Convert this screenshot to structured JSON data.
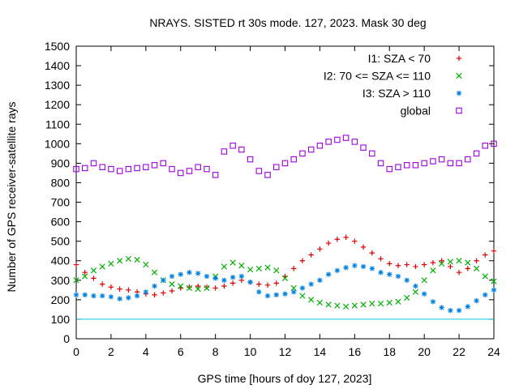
{
  "chart_data": {
    "type": "scatter",
    "title": "NRAYS. SISTED rt 30s mode. 127, 2023. Mask 30 deg",
    "xlabel": "GPS time [hours of doy 127, 2023]",
    "ylabel": "Number of GPS receiver-satellite rays",
    "xlim": [
      0,
      24
    ],
    "ylim": [
      0,
      1500
    ],
    "x_ticks": [
      "0",
      "2",
      "4",
      "6",
      "8",
      "10",
      "12",
      "14",
      "16",
      "18",
      "20",
      "22",
      "24"
    ],
    "y_ticks": [
      "0",
      "100",
      "200",
      "300",
      "400",
      "500",
      "600",
      "700",
      "800",
      "900",
      "1000",
      "1100",
      "1200",
      "1300",
      "1400",
      "1500"
    ],
    "grid": false,
    "legend_position": "top-right",
    "reference_line": {
      "y": 100,
      "color": "#00d0d0"
    },
    "series": [
      {
        "name": "I1: SZA < 70",
        "marker": "+",
        "color": "#e00000",
        "x": [
          0,
          0.5,
          1,
          1.5,
          2,
          2.5,
          3,
          3.5,
          4,
          4.5,
          5,
          5.5,
          6,
          6.5,
          7,
          7.5,
          8,
          8.5,
          9,
          9.5,
          10,
          10.5,
          11,
          11.5,
          12,
          12.5,
          13,
          13.5,
          14,
          14.5,
          15,
          15.5,
          16,
          16.5,
          17,
          17.5,
          18,
          18.5,
          19,
          19.5,
          20,
          20.5,
          21,
          21.5,
          22,
          22.5,
          23,
          23.5,
          24
        ],
        "values": [
          380,
          340,
          310,
          280,
          265,
          255,
          250,
          240,
          230,
          225,
          235,
          245,
          260,
          265,
          270,
          265,
          260,
          270,
          285,
          300,
          290,
          280,
          275,
          285,
          320,
          360,
          400,
          430,
          460,
          490,
          510,
          520,
          500,
          470,
          440,
          410,
          385,
          375,
          380,
          370,
          380,
          390,
          400,
          370,
          340,
          360,
          400,
          430,
          450
        ]
      },
      {
        "name": "I2: 70 <= SZA <= 110",
        "marker": "x",
        "color": "#00b000",
        "x": [
          0,
          0.5,
          1,
          1.5,
          2,
          2.5,
          3,
          3.5,
          4,
          4.5,
          5,
          5.5,
          6,
          6.5,
          7,
          7.5,
          8,
          8.5,
          9,
          9.5,
          10,
          10.5,
          11,
          11.5,
          12,
          12.5,
          13,
          13.5,
          14,
          14.5,
          15,
          15.5,
          16,
          16.5,
          17,
          17.5,
          18,
          18.5,
          19,
          19.5,
          20,
          20.5,
          21,
          21.5,
          22,
          22.5,
          23,
          23.5,
          24
        ],
        "values": [
          300,
          320,
          350,
          370,
          385,
          400,
          410,
          405,
          380,
          340,
          300,
          280,
          270,
          260,
          255,
          260,
          320,
          370,
          390,
          375,
          355,
          360,
          365,
          350,
          310,
          260,
          220,
          200,
          185,
          175,
          170,
          165,
          170,
          175,
          180,
          180,
          185,
          190,
          210,
          240,
          300,
          350,
          385,
          395,
          400,
          390,
          360,
          320,
          295
        ]
      },
      {
        "name": "I3: SZA > 110",
        "marker": "*",
        "color": "#0080e0",
        "x": [
          0,
          0.5,
          1,
          1.5,
          2,
          2.5,
          3,
          3.5,
          4,
          4.5,
          5,
          5.5,
          6,
          6.5,
          7,
          7.5,
          8,
          8.5,
          9,
          9.5,
          10,
          10.5,
          11,
          11.5,
          12,
          12.5,
          13,
          13.5,
          14,
          14.5,
          15,
          15.5,
          16,
          16.5,
          17,
          17.5,
          18,
          18.5,
          19,
          19.5,
          20,
          20.5,
          21,
          21.5,
          22,
          22.5,
          23,
          23.5,
          24
        ],
        "values": [
          225,
          225,
          220,
          220,
          215,
          205,
          210,
          220,
          240,
          270,
          300,
          320,
          330,
          340,
          335,
          320,
          310,
          300,
          315,
          320,
          290,
          240,
          220,
          225,
          230,
          240,
          260,
          280,
          300,
          330,
          350,
          365,
          375,
          370,
          360,
          340,
          330,
          320,
          300,
          270,
          230,
          190,
          160,
          145,
          145,
          165,
          195,
          225,
          250
        ]
      },
      {
        "name": "global",
        "marker": "square",
        "color": "#a000e0",
        "x": [
          0,
          0.5,
          1,
          1.5,
          2,
          2.5,
          3,
          3.5,
          4,
          4.5,
          5,
          5.5,
          6,
          6.5,
          7,
          7.5,
          8,
          8.5,
          9,
          9.5,
          10,
          10.5,
          11,
          11.5,
          12,
          12.5,
          13,
          13.5,
          14,
          14.5,
          15,
          15.5,
          16,
          16.5,
          17,
          17.5,
          18,
          18.5,
          19,
          19.5,
          20,
          20.5,
          21,
          21.5,
          22,
          22.5,
          23,
          23.5,
          24
        ],
        "values": [
          870,
          875,
          900,
          880,
          870,
          860,
          870,
          875,
          880,
          890,
          900,
          870,
          850,
          860,
          880,
          870,
          840,
          960,
          990,
          970,
          920,
          860,
          840,
          880,
          900,
          920,
          950,
          970,
          990,
          1010,
          1020,
          1030,
          1010,
          980,
          950,
          900,
          870,
          880,
          890,
          890,
          900,
          910,
          920,
          900,
          900,
          920,
          950,
          990,
          1000
        ]
      }
    ]
  }
}
